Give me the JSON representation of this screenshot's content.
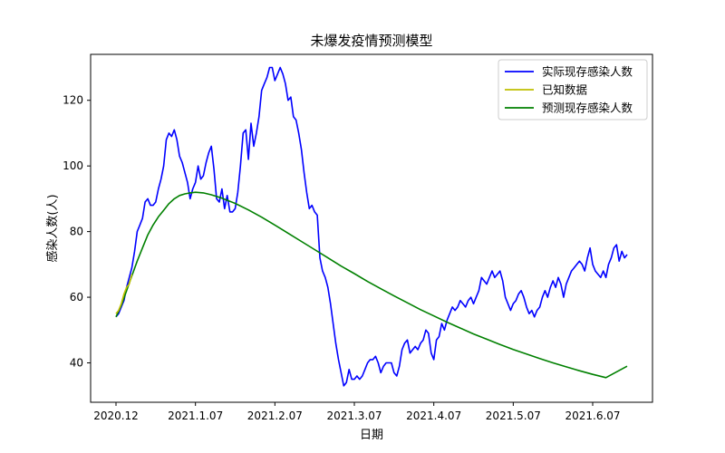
{
  "chart_data": {
    "type": "line",
    "title": "未爆发疫情预测模型",
    "xlabel": "日期",
    "ylabel": "感染人数(人)",
    "x_range": [
      0,
      200
    ],
    "ylim": [
      28,
      134
    ],
    "x_ticks": [
      {
        "label": "2020.12",
        "day": 0
      },
      {
        "label": "2021.1.07",
        "day": 30
      },
      {
        "label": "2021.2.07",
        "day": 60
      },
      {
        "label": "2021.3.07",
        "day": 90
      },
      {
        "label": "2021.4.07",
        "day": 120
      },
      {
        "label": "2021.5.07",
        "day": 150
      },
      {
        "label": "2021.6.07",
        "day": 180
      }
    ],
    "y_ticks": [
      40,
      60,
      80,
      100,
      120
    ],
    "grid": false,
    "legend_position": "top-right",
    "series": [
      {
        "name": "实际现存感染人数",
        "color": "#0000ff",
        "points": [
          [
            0,
            54
          ],
          [
            1,
            55
          ],
          [
            2,
            57
          ],
          [
            3,
            59
          ],
          [
            4,
            63
          ],
          [
            5,
            66
          ],
          [
            6,
            69
          ],
          [
            7,
            74
          ],
          [
            8,
            80
          ],
          [
            9,
            82
          ],
          [
            10,
            84
          ],
          [
            11,
            89
          ],
          [
            12,
            90
          ],
          [
            13,
            88
          ],
          [
            14,
            88
          ],
          [
            15,
            89
          ],
          [
            16,
            93
          ],
          [
            17,
            96
          ],
          [
            18,
            100
          ],
          [
            19,
            108
          ],
          [
            20,
            110
          ],
          [
            21,
            109
          ],
          [
            22,
            111
          ],
          [
            23,
            108
          ],
          [
            24,
            103
          ],
          [
            25,
            101
          ],
          [
            26,
            98
          ],
          [
            27,
            95
          ],
          [
            28,
            90
          ],
          [
            29,
            93
          ],
          [
            30,
            95
          ],
          [
            31,
            100
          ],
          [
            32,
            96
          ],
          [
            33,
            97
          ],
          [
            34,
            101
          ],
          [
            35,
            104
          ],
          [
            36,
            106
          ],
          [
            37,
            99
          ],
          [
            38,
            90
          ],
          [
            39,
            89
          ],
          [
            40,
            93
          ],
          [
            41,
            87
          ],
          [
            42,
            91
          ],
          [
            43,
            86
          ],
          [
            44,
            86
          ],
          [
            45,
            87
          ],
          [
            46,
            92
          ],
          [
            47,
            100
          ],
          [
            48,
            110
          ],
          [
            49,
            111
          ],
          [
            50,
            102
          ],
          [
            51,
            113
          ],
          [
            52,
            106
          ],
          [
            53,
            110
          ],
          [
            54,
            115
          ],
          [
            55,
            123
          ],
          [
            56,
            125
          ],
          [
            57,
            127
          ],
          [
            58,
            130
          ],
          [
            59,
            130
          ],
          [
            60,
            126
          ],
          [
            61,
            128
          ],
          [
            62,
            130
          ],
          [
            63,
            128
          ],
          [
            64,
            125
          ],
          [
            65,
            120
          ],
          [
            66,
            121
          ],
          [
            67,
            115
          ],
          [
            68,
            114
          ],
          [
            69,
            110
          ],
          [
            70,
            105
          ],
          [
            71,
            98
          ],
          [
            72,
            92
          ],
          [
            73,
            87
          ],
          [
            74,
            88
          ],
          [
            75,
            86
          ],
          [
            76,
            85
          ],
          [
            77,
            72
          ],
          [
            78,
            68
          ],
          [
            79,
            66
          ],
          [
            80,
            63
          ],
          [
            81,
            58
          ],
          [
            82,
            52
          ],
          [
            83,
            46
          ],
          [
            84,
            41
          ],
          [
            85,
            37
          ],
          [
            86,
            33
          ],
          [
            87,
            34
          ],
          [
            88,
            38
          ],
          [
            89,
            35
          ],
          [
            90,
            35
          ],
          [
            91,
            36
          ],
          [
            92,
            35
          ],
          [
            93,
            36
          ],
          [
            94,
            38
          ],
          [
            95,
            40
          ],
          [
            96,
            41
          ],
          [
            97,
            41
          ],
          [
            98,
            42
          ],
          [
            99,
            40
          ],
          [
            100,
            37
          ],
          [
            101,
            39
          ],
          [
            102,
            40
          ],
          [
            103,
            40
          ],
          [
            104,
            40
          ],
          [
            105,
            37
          ],
          [
            106,
            36
          ],
          [
            107,
            39
          ],
          [
            108,
            44
          ],
          [
            109,
            46
          ],
          [
            110,
            47
          ],
          [
            111,
            43
          ],
          [
            112,
            44
          ],
          [
            113,
            45
          ],
          [
            114,
            44
          ],
          [
            115,
            46
          ],
          [
            116,
            47
          ],
          [
            117,
            50
          ],
          [
            118,
            49
          ],
          [
            119,
            43
          ],
          [
            120,
            41
          ],
          [
            121,
            47
          ],
          [
            122,
            48
          ],
          [
            123,
            52
          ],
          [
            124,
            50
          ],
          [
            125,
            53
          ],
          [
            126,
            55
          ],
          [
            127,
            57
          ],
          [
            128,
            56
          ],
          [
            129,
            57
          ],
          [
            130,
            59
          ],
          [
            131,
            58
          ],
          [
            132,
            57
          ],
          [
            133,
            59
          ],
          [
            134,
            60
          ],
          [
            135,
            58
          ],
          [
            136,
            60
          ],
          [
            137,
            62
          ],
          [
            138,
            66
          ],
          [
            139,
            65
          ],
          [
            140,
            64
          ],
          [
            141,
            66
          ],
          [
            142,
            68
          ],
          [
            143,
            66
          ],
          [
            144,
            67
          ],
          [
            145,
            68
          ],
          [
            146,
            65
          ],
          [
            147,
            60
          ],
          [
            148,
            58
          ],
          [
            149,
            56
          ],
          [
            150,
            58
          ],
          [
            151,
            59
          ],
          [
            152,
            61
          ],
          [
            153,
            62
          ],
          [
            154,
            60
          ],
          [
            155,
            57
          ],
          [
            156,
            55
          ],
          [
            157,
            56
          ],
          [
            158,
            54
          ],
          [
            159,
            56
          ],
          [
            160,
            57
          ],
          [
            161,
            60
          ],
          [
            162,
            62
          ],
          [
            163,
            60
          ],
          [
            164,
            63
          ],
          [
            165,
            65
          ],
          [
            166,
            63
          ],
          [
            167,
            66
          ],
          [
            168,
            64
          ],
          [
            169,
            60
          ],
          [
            170,
            64
          ],
          [
            171,
            66
          ],
          [
            172,
            68
          ],
          [
            173,
            69
          ],
          [
            174,
            70
          ],
          [
            175,
            71
          ],
          [
            176,
            70
          ],
          [
            177,
            68
          ],
          [
            178,
            72
          ],
          [
            179,
            75
          ],
          [
            180,
            70
          ],
          [
            181,
            68
          ],
          [
            182,
            67
          ],
          [
            183,
            66
          ],
          [
            184,
            68
          ],
          [
            185,
            66
          ],
          [
            186,
            70
          ],
          [
            187,
            72
          ],
          [
            188,
            75
          ],
          [
            189,
            76
          ],
          [
            190,
            71
          ],
          [
            191,
            74
          ],
          [
            192,
            72
          ],
          [
            193,
            73
          ]
        ]
      },
      {
        "name": "已知数据",
        "color": "#bfbf00",
        "points": [
          [
            0,
            55
          ],
          [
            1,
            56
          ],
          [
            2,
            58
          ],
          [
            3,
            61
          ],
          [
            4,
            63
          ],
          [
            5,
            64
          ],
          [
            6,
            67
          ]
        ]
      },
      {
        "name": "预测现存感染人数",
        "color": "#008000",
        "points": [
          [
            0,
            54
          ],
          [
            2,
            57.5
          ],
          [
            4,
            62
          ],
          [
            6,
            66.5
          ],
          [
            8,
            71
          ],
          [
            10,
            75
          ],
          [
            12,
            79
          ],
          [
            14,
            82
          ],
          [
            16,
            84.5
          ],
          [
            18,
            86.5
          ],
          [
            20,
            88.5
          ],
          [
            22,
            90
          ],
          [
            24,
            91
          ],
          [
            26,
            91.5
          ],
          [
            28,
            91.8
          ],
          [
            30,
            92
          ],
          [
            33,
            91.8
          ],
          [
            36,
            91.2
          ],
          [
            40,
            90.2
          ],
          [
            45,
            88.6
          ],
          [
            50,
            86.6
          ],
          [
            55,
            84.4
          ],
          [
            60,
            82
          ],
          [
            65,
            79.5
          ],
          [
            70,
            77
          ],
          [
            75,
            74.5
          ],
          [
            80,
            72
          ],
          [
            85,
            69.5
          ],
          [
            90,
            67.2
          ],
          [
            95,
            64.8
          ],
          [
            100,
            62.6
          ],
          [
            105,
            60.4
          ],
          [
            110,
            58.3
          ],
          [
            115,
            56.2
          ],
          [
            120,
            54.3
          ],
          [
            125,
            52.4
          ],
          [
            130,
            50.6
          ],
          [
            135,
            48.8
          ],
          [
            140,
            47.2
          ],
          [
            145,
            45.6
          ],
          [
            150,
            44.1
          ],
          [
            155,
            42.7
          ],
          [
            160,
            41.3
          ],
          [
            165,
            40
          ],
          [
            170,
            38.8
          ],
          [
            175,
            37.6
          ],
          [
            180,
            36.5
          ],
          [
            185,
            35.5
          ],
          [
            193,
            39
          ]
        ]
      }
    ]
  }
}
